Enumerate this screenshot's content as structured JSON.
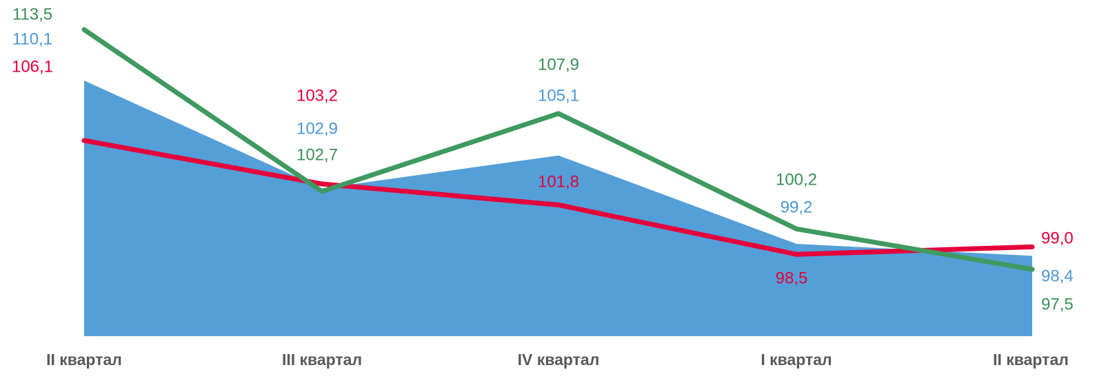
{
  "chart_data": {
    "type": "line",
    "categories": [
      "II квартал",
      "III квартал",
      "IV квартал",
      "I квартал",
      "II квартал"
    ],
    "series": [
      {
        "type": "area",
        "color": "#549fd8",
        "label_color": "#4a98d6",
        "values": [
          110.1,
          102.9,
          105.1,
          99.2,
          98.4
        ],
        "value_labels": [
          "110,1",
          "102,9",
          "105,1",
          "99,2",
          "98,4"
        ]
      },
      {
        "type": "line",
        "color": "#e4003a",
        "label_color": "#e4003a",
        "values": [
          106.1,
          103.2,
          101.8,
          98.5,
          99.0
        ],
        "value_labels": [
          "106,1",
          "103,2",
          "101,8",
          "98,5",
          "99,0"
        ]
      },
      {
        "type": "line",
        "color": "#3f9a5f",
        "label_color": "#3a8f55",
        "values": [
          113.5,
          102.7,
          107.9,
          100.2,
          97.5
        ],
        "value_labels": [
          "113,5",
          "102,7",
          "107,9",
          "100,2",
          "97,5"
        ]
      }
    ]
  }
}
